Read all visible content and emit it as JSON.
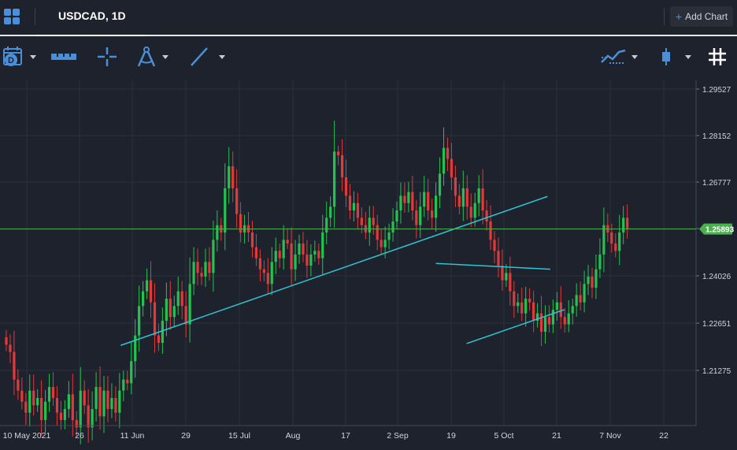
{
  "header": {
    "tab_title": "USDCAD, 1D",
    "add_chart_label": "Add Chart"
  },
  "toolbar": {
    "icons": [
      "calendar-icon",
      "ruler-icon",
      "crosshair-icon",
      "compass-icon",
      "trendline-icon",
      "indicators-icon",
      "candlestick-icon",
      "grid-icon"
    ],
    "calendar_letter": "D"
  },
  "colors": {
    "background": "#1e222d",
    "up": "#26c24f",
    "down": "#e03a3a",
    "trendline": "#2ec5d3",
    "price_line": "#4caf50",
    "grid": "#2b3040",
    "accent": "#4a90d9"
  },
  "chart_data": {
    "type": "candlestick",
    "symbol": "USDCAD",
    "interval": "1D",
    "y_ticks": [
      "1.29527",
      "1.28152",
      "1.26777",
      "1.25401",
      "1.24026",
      "1.22651",
      "1.21275"
    ],
    "x_ticks": [
      "10 May 2021",
      "26",
      "11 Jun",
      "29",
      "15 Jul",
      "Aug",
      "17",
      "2 Sep",
      "19",
      "5 Oct",
      "21",
      "7 Nov",
      "22"
    ],
    "last_price": "1.25893",
    "ylim": [
      1.2055,
      1.2985
    ],
    "grid": true,
    "trendlines": [
      {
        "from": [
          "2021-06-20",
          1.2273
        ],
        "to": [
          "2021-11-20",
          1.2678
        ]
      },
      {
        "from": [
          "2021-10-11",
          1.2496
        ],
        "to": [
          "2021-11-21",
          1.248
        ]
      },
      {
        "from": [
          "2021-10-22",
          1.2278
        ],
        "to": [
          "2021-11-26",
          1.237
        ]
      }
    ],
    "closes": [
      1.2275,
      1.2255,
      1.218,
      1.215,
      1.212,
      1.209,
      1.215,
      1.211,
      1.213,
      1.207,
      1.212,
      1.216,
      1.213,
      1.209,
      1.207,
      1.21,
      1.214,
      1.207,
      1.205,
      1.215,
      1.211,
      1.205,
      1.21,
      1.216,
      1.208,
      1.215,
      1.21,
      1.213,
      1.209,
      1.215,
      1.218,
      1.217,
      1.223,
      1.23,
      1.238,
      1.242,
      1.245,
      1.239,
      1.23,
      1.228,
      1.234,
      1.24,
      1.235,
      1.238,
      1.242,
      1.238,
      1.233,
      1.244,
      1.25,
      1.247,
      1.246,
      1.25,
      1.247,
      1.256,
      1.26,
      1.258,
      1.27,
      1.276,
      1.27,
      1.263,
      1.258,
      1.26,
      1.258,
      1.254,
      1.251,
      1.248,
      1.247,
      1.244,
      1.25,
      1.253,
      1.251,
      1.256,
      1.255,
      1.248,
      1.252,
      1.255,
      1.252,
      1.249,
      1.252,
      1.253,
      1.251,
      1.258,
      1.262,
      1.265,
      1.28,
      1.279,
      1.273,
      1.268,
      1.264,
      1.266,
      1.262,
      1.26,
      1.258,
      1.262,
      1.26,
      1.256,
      1.254,
      1.256,
      1.258,
      1.261,
      1.264,
      1.268,
      1.266,
      1.269,
      1.264,
      1.26,
      1.265,
      1.269,
      1.264,
      1.262,
      1.268,
      1.274,
      1.281,
      1.278,
      1.273,
      1.268,
      1.265,
      1.27,
      1.265,
      1.262,
      1.266,
      1.27,
      1.264,
      1.261,
      1.256,
      1.253,
      1.249,
      1.245,
      1.247,
      1.242,
      1.238,
      1.239,
      1.236,
      1.24,
      1.239,
      1.234,
      1.236,
      1.231,
      1.235,
      1.233,
      1.237,
      1.239,
      1.235,
      1.233,
      1.236,
      1.238,
      1.241,
      1.239,
      1.244,
      1.246,
      1.243,
      1.248,
      1.252,
      1.26,
      1.258,
      1.255,
      1.253,
      1.258,
      1.262,
      1.2589
    ]
  }
}
